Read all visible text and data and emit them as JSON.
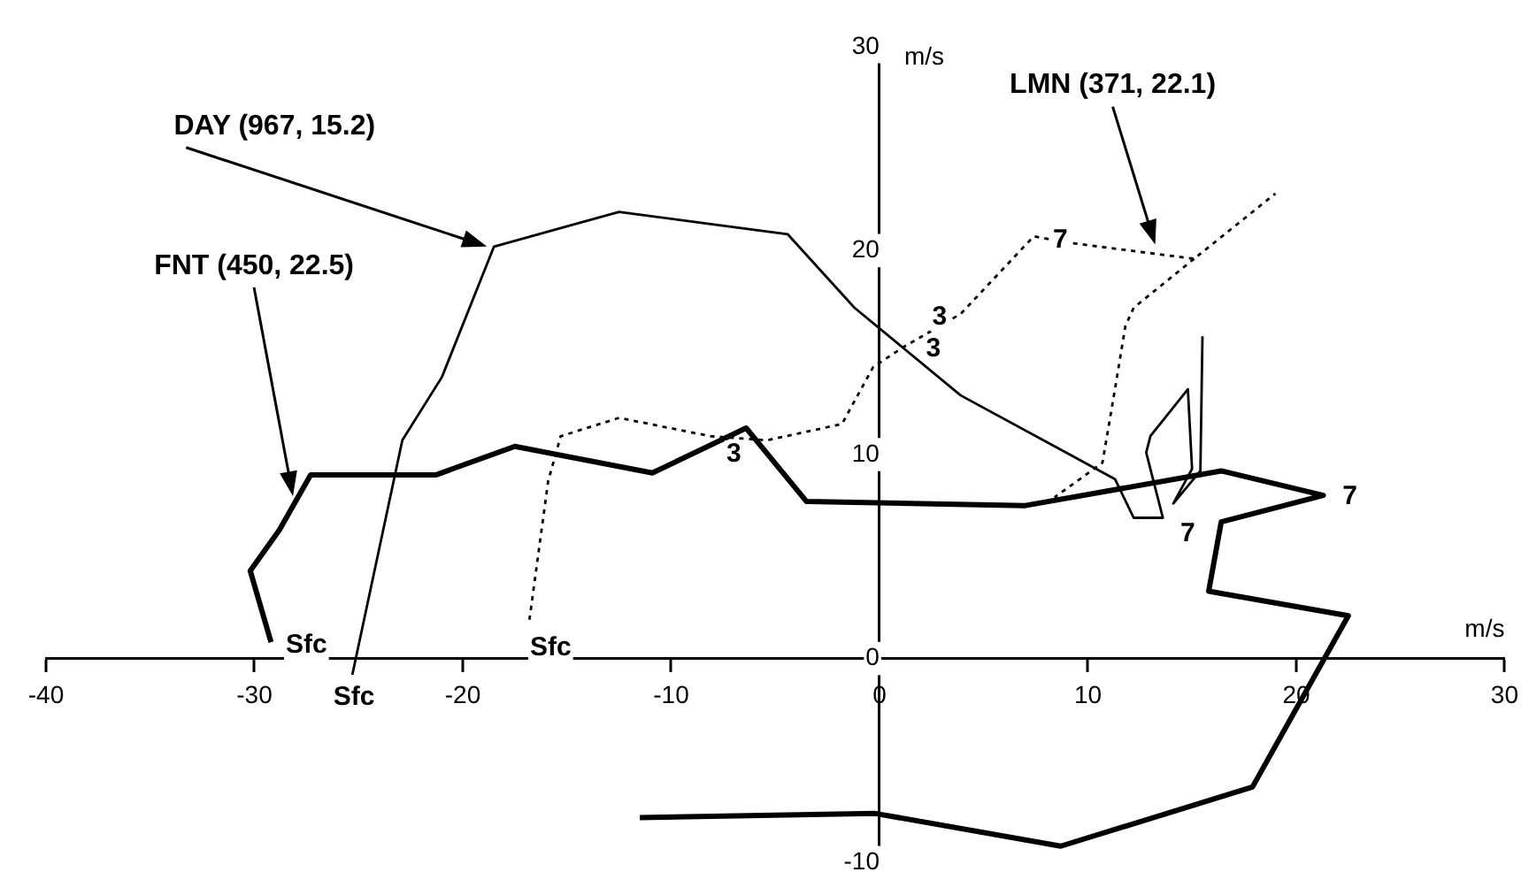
{
  "chart_data": {
    "type": "line",
    "xlabel": "m/s",
    "ylabel": "m/s",
    "xlim": [
      -40,
      30
    ],
    "ylim": [
      -10,
      30
    ],
    "xticks": [
      -40,
      -30,
      -20,
      -10,
      0,
      10,
      20,
      30
    ],
    "yticks": [
      -10,
      0,
      10,
      20,
      30
    ],
    "legend": false,
    "series": [
      {
        "name": "FNT (450, 22.5)",
        "color": "#000000",
        "line_style": "solid",
        "x": [
          -29.2,
          -30.2,
          -28.8,
          -27.3,
          -21.3,
          -17.5,
          -10.9,
          -6.4,
          -3.5,
          7.0,
          16.4,
          21.3,
          16.4,
          15.8,
          22.5,
          17.9,
          8.7,
          -0.2,
          -11.5
        ],
        "values": [
          0.8,
          4.3,
          6.3,
          9.0,
          9.0,
          10.4,
          9.1,
          11.3,
          7.7,
          7.5,
          9.2,
          8.0,
          6.7,
          3.3,
          2.1,
          -6.3,
          -9.2,
          -7.6,
          -7.8
        ]
      },
      {
        "name": "DAY (967, 15.2)",
        "color": "#000000",
        "line_style": "solid",
        "x": [
          -25.3,
          -22.9,
          -21.0,
          -18.5,
          -12.5,
          -4.4,
          -1.2,
          3.9,
          11.3,
          12.2,
          13.6,
          12.8,
          13.0,
          14.8,
          15.0,
          14.1,
          15.4,
          15.5
        ],
        "values": [
          -0.8,
          10.7,
          13.8,
          20.2,
          21.9,
          20.8,
          17.2,
          12.9,
          8.8,
          6.9,
          6.9,
          10.1,
          10.9,
          13.2,
          9.3,
          7.6,
          9.2,
          15.8
        ]
      },
      {
        "name": "LMN (371, 22.1)",
        "color": "#000000",
        "line_style": "dotted",
        "x": [
          -16.8,
          -15.9,
          -15.3,
          -12.5,
          -8.1,
          -5.4,
          -1.8,
          -0.3,
          1.2,
          3.9,
          7.4,
          9.0,
          15.1,
          19.0,
          null,
          15.1,
          12.2,
          11.8,
          11.3,
          10.7,
          8.4
        ],
        "values": [
          1.9,
          8.7,
          10.9,
          11.8,
          10.9,
          10.7,
          11.5,
          14.3,
          15.3,
          16.9,
          20.7,
          20.4,
          19.6,
          22.8,
          null,
          19.6,
          17.2,
          16.3,
          13.2,
          9.6,
          7.9
        ]
      }
    ],
    "annotations": [
      {
        "text": "Sfc",
        "x": -29.2,
        "y": 0.8
      },
      {
        "text": "Sfc",
        "x": -25.3,
        "y": -0.8
      },
      {
        "text": "Sfc",
        "x": -16.8,
        "y": 1.9
      },
      {
        "text": "3",
        "x": -6.4,
        "y": 11.3
      },
      {
        "text": "3",
        "x": 3.9,
        "y": 16.9
      },
      {
        "text": "3",
        "x": 1.4,
        "y": 15.0
      },
      {
        "text": "7",
        "x": 7.4,
        "y": 20.7
      },
      {
        "text": "7",
        "x": 13.6,
        "y": 6.9
      },
      {
        "text": "7",
        "x": 21.3,
        "y": 8.0
      }
    ]
  }
}
